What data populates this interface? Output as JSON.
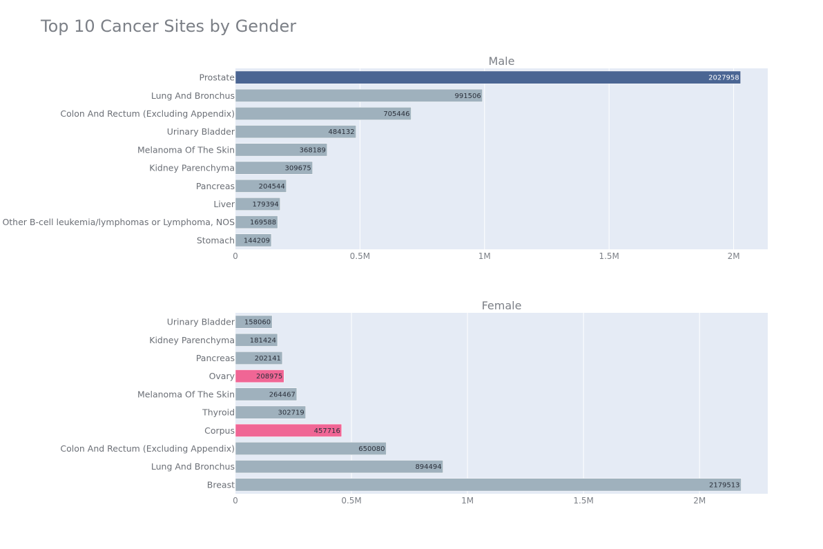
{
  "title": "Top 10 Cancer Sites by Gender",
  "colors": {
    "plot_bg": "#e5ebf5",
    "grid": "#ffffff",
    "bar_default": "#9fb1bd",
    "bar_highlight_male": "#4a6593",
    "bar_highlight_female": "#f06695",
    "label_dark": "#2a2f3a",
    "label_light": "#ffffff"
  },
  "chart_data": [
    {
      "type": "bar",
      "orientation": "horizontal",
      "subtitle": "Male",
      "categories": [
        "Prostate",
        "Lung And Bronchus",
        "Colon And Rectum (Excluding Appendix)",
        "Urinary Bladder",
        "Melanoma Of The Skin",
        "Kidney Parenchyma",
        "Pancreas",
        "Liver",
        "Other B-cell leukemia/lymphomas or Lymphoma, NOS",
        "Stomach"
      ],
      "values": [
        2027958,
        991506,
        705446,
        484132,
        368189,
        309675,
        204544,
        179394,
        169588,
        144209
      ],
      "value_labels": [
        "2027958",
        "991506",
        "705446",
        "484132",
        "368189",
        "309675",
        "204544",
        "179394",
        "169588",
        "144209"
      ],
      "highlight": [
        true,
        false,
        false,
        false,
        false,
        false,
        false,
        false,
        false,
        false
      ],
      "highlight_color": "#4a6593",
      "xlim": [
        0,
        2137000
      ],
      "ticks": [
        0,
        500000,
        1000000,
        1500000,
        2000000
      ],
      "tick_labels": [
        "0",
        "0.5M",
        "1M",
        "1.5M",
        "2M"
      ],
      "grid": true
    },
    {
      "type": "bar",
      "orientation": "horizontal",
      "subtitle": "Female",
      "categories": [
        "Urinary Bladder",
        "Kidney Parenchyma",
        "Pancreas",
        "Ovary",
        "Melanoma Of The Skin",
        "Thyroid",
        "Corpus",
        "Colon And Rectum (Excluding Appendix)",
        "Lung And Bronchus",
        "Breast"
      ],
      "values": [
        158060,
        181424,
        202141,
        208975,
        264467,
        302719,
        457716,
        650080,
        894494,
        2179513
      ],
      "value_labels": [
        "158060",
        "181424",
        "202141",
        "208975",
        "264467",
        "302719",
        "457716",
        "650080",
        "894494",
        "2179513"
      ],
      "highlight": [
        false,
        false,
        false,
        true,
        false,
        false,
        true,
        false,
        false,
        false
      ],
      "highlight_color": "#f06695",
      "xlim": [
        0,
        2294000
      ],
      "ticks": [
        0,
        500000,
        1000000,
        1500000,
        2000000
      ],
      "tick_labels": [
        "0",
        "0.5M",
        "1M",
        "1.5M",
        "2M"
      ],
      "grid": true
    }
  ]
}
